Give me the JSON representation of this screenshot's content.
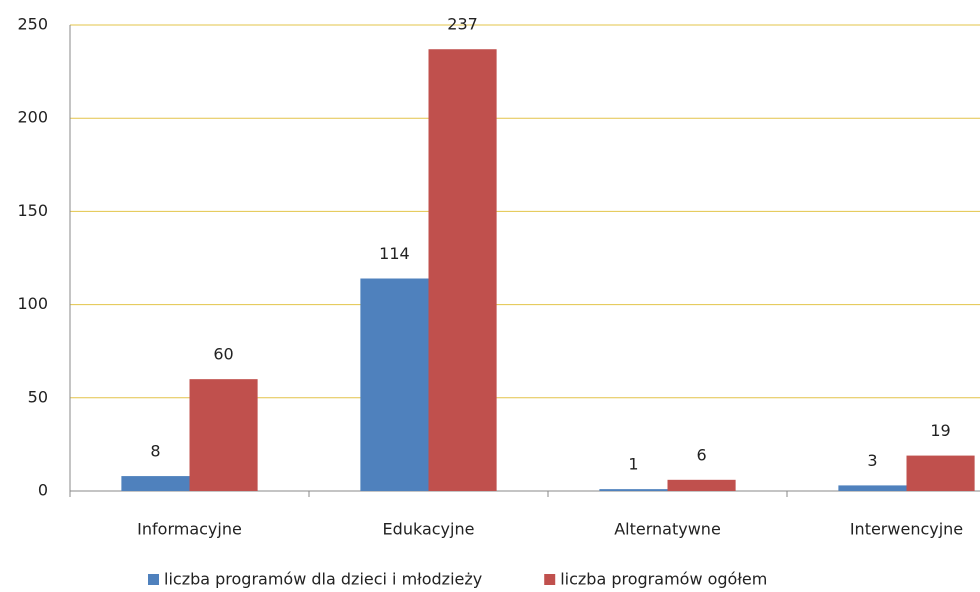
{
  "chart_data": {
    "type": "bar",
    "categories": [
      "Informacyjne",
      "Edukacyjne",
      "Alternatywne",
      "Interwencyjne"
    ],
    "series": [
      {
        "name": "liczba programów dla dzieci i młodzieży",
        "color": "#4f81bd",
        "values": [
          8,
          114,
          1,
          3
        ]
      },
      {
        "name": "liczba programów ogółem",
        "color": "#c0504d",
        "values": [
          60,
          237,
          6,
          19
        ]
      }
    ],
    "ylim": [
      0,
      250
    ],
    "yticks": [
      0,
      50,
      100,
      150,
      200,
      250
    ],
    "grid": true,
    "legend": "bottom"
  }
}
